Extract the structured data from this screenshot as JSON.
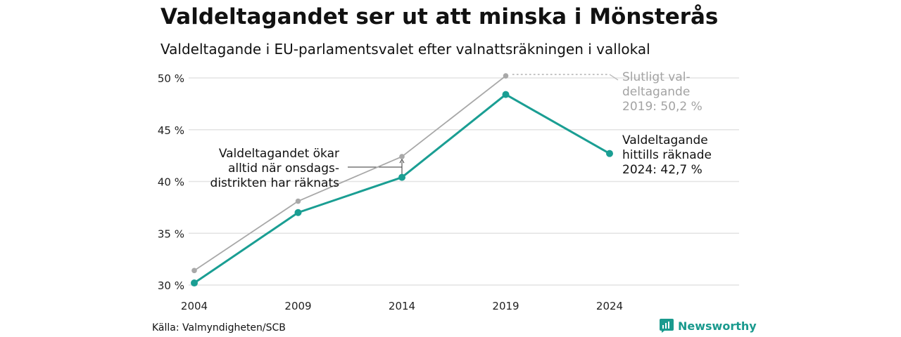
{
  "title": "Valdeltagandet ser ut att minska i Mönsterås",
  "subtitle": "Valdeltagande i EU-parlamentsvalet efter valnattsräkningen i vallokal",
  "source": "Källa: Valmyndigheten/SCB",
  "brand": "Newsworthy",
  "colors": {
    "current": "#1a9e93",
    "final": "#a8a8a8",
    "grid": "#e3e3e3",
    "brand": "#1a9a8e"
  },
  "chart_data": {
    "type": "line",
    "x": [
      2004,
      2009,
      2014,
      2019,
      2024
    ],
    "x_tick_labels": [
      "2004",
      "2009",
      "2014",
      "2019",
      "2024"
    ],
    "ylim": [
      30,
      50
    ],
    "y_ticks": [
      30,
      35,
      40,
      45,
      50
    ],
    "y_tick_labels": [
      "30 %",
      "35 %",
      "40 %",
      "45 %",
      "50 %"
    ],
    "grid": true,
    "series": [
      {
        "key": "final",
        "values": [
          31.4,
          38.1,
          42.4,
          50.2,
          null
        ]
      },
      {
        "key": "current",
        "values": [
          30.2,
          37.0,
          40.4,
          48.4,
          42.7
        ]
      }
    ],
    "annotations": {
      "final_label": [
        "Slutligt val-",
        "deltagande",
        "2019: 50,2 %"
      ],
      "current_label": [
        "Valdeltagande",
        "hittills räknade",
        "2024: 42,7 %"
      ],
      "note_label": [
        "Valdeltagandet ökar",
        "alltid när onsdags-",
        "distrikten har räknats"
      ]
    }
  }
}
